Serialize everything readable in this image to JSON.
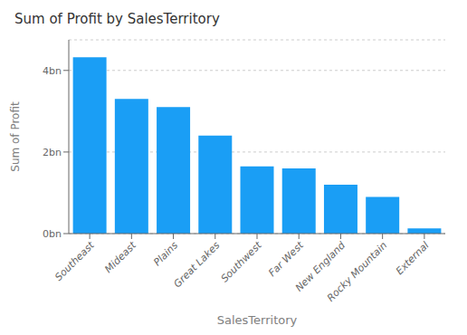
{
  "chart_data": {
    "type": "bar",
    "title": "Sum of Profit by SalesTerritory",
    "xlabel": "SalesTerritory",
    "ylabel": "Sum of Profit",
    "categories": [
      "Southeast",
      "Mideast",
      "Plains",
      "Great Lakes",
      "Southwest",
      "Far West",
      "New England",
      "Rocky Mountain",
      "External"
    ],
    "values": [
      4.32,
      3.3,
      3.1,
      2.4,
      1.65,
      1.6,
      1.2,
      0.9,
      0.13
    ],
    "color": "#1a9ef5",
    "ylim": [
      0,
      4.75
    ],
    "yticks": [
      {
        "value": 0,
        "label": "0bn"
      },
      {
        "value": 2,
        "label": "2bn"
      },
      {
        "value": 4,
        "label": "4bn"
      }
    ],
    "grid": true
  }
}
